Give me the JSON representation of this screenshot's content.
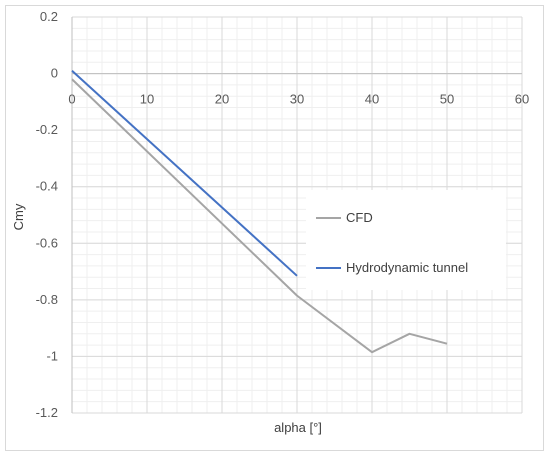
{
  "chart_data": {
    "type": "line",
    "xlabel": "alpha [°]",
    "ylabel": "Cmy",
    "xlim": [
      0,
      60
    ],
    "ylim": [
      -1.2,
      0.2
    ],
    "x_ticks": [
      0,
      10,
      20,
      30,
      40,
      50,
      60
    ],
    "y_ticks": [
      0.2,
      0,
      -0.2,
      -0.4,
      -0.6,
      -0.8,
      -1,
      -1.2
    ],
    "x_tick_labels": [
      "0",
      "10",
      "20",
      "30",
      "40",
      "50",
      "60"
    ],
    "y_tick_labels": [
      "0.2",
      "0",
      "-0.2",
      "-0.4",
      "-0.6",
      "-0.8",
      "-1",
      "-1.2"
    ],
    "grid": true,
    "minor_grid": true,
    "legend_position": "right",
    "series": [
      {
        "name": "CFD",
        "color": "#a5a5a5",
        "points": [
          [
            0,
            -0.02
          ],
          [
            30,
            -0.785
          ],
          [
            40,
            -0.985
          ],
          [
            45,
            -0.92
          ],
          [
            50,
            -0.955
          ]
        ]
      },
      {
        "name": "Hydrodynamic tunnel",
        "color": "#4472c4",
        "points": [
          [
            0,
            0.01
          ],
          [
            30,
            -0.715
          ]
        ]
      }
    ]
  }
}
